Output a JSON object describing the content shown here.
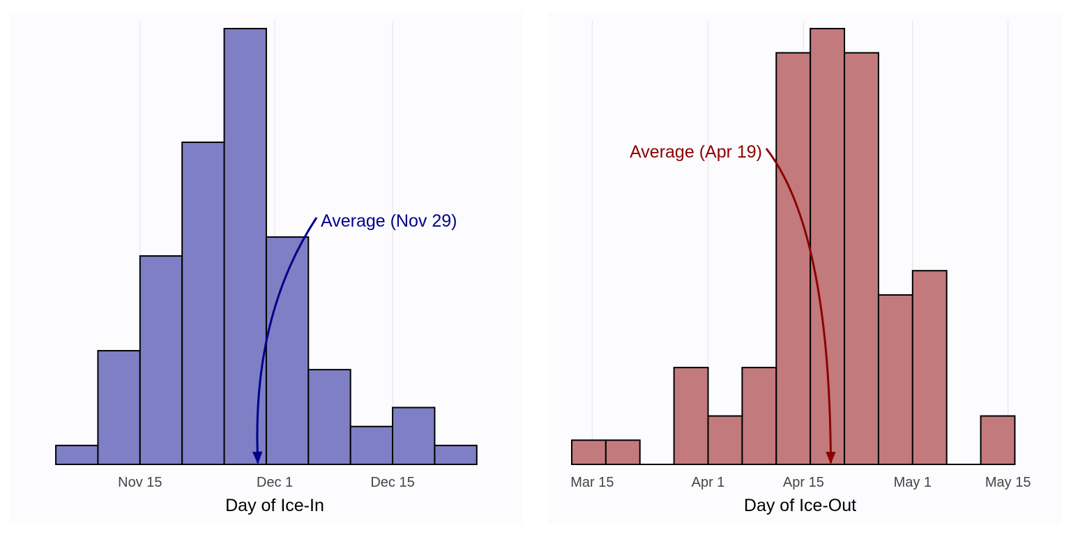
{
  "chart_data": [
    {
      "type": "bar",
      "chart_kind": "histogram",
      "xlabel": "Day of Ice-In",
      "ylabel": "",
      "x_ticks": [
        "Nov 15",
        "Dec 1",
        "Dec 15"
      ],
      "x_tick_dates": [
        "2000-11-15",
        "2000-12-01",
        "2000-12-15"
      ],
      "x_range": [
        "2000-11-04",
        "2000-12-28"
      ],
      "grid": "vertical",
      "legend": "none",
      "bins": [
        {
          "start": "2000-11-05",
          "end": "2000-11-10",
          "count": 2
        },
        {
          "start": "2000-11-10",
          "end": "2000-11-15",
          "count": 12
        },
        {
          "start": "2000-11-15",
          "end": "2000-11-20",
          "count": 22
        },
        {
          "start": "2000-11-20",
          "end": "2000-11-25",
          "count": 34
        },
        {
          "start": "2000-11-25",
          "end": "2000-11-30",
          "count": 46
        },
        {
          "start": "2000-11-30",
          "end": "2000-12-05",
          "count": 24
        },
        {
          "start": "2000-12-05",
          "end": "2000-12-10",
          "count": 10
        },
        {
          "start": "2000-12-10",
          "end": "2000-12-15",
          "count": 4
        },
        {
          "start": "2000-12-15",
          "end": "2000-12-20",
          "count": 6
        },
        {
          "start": "2000-12-20",
          "end": "2000-12-25",
          "count": 2
        }
      ],
      "ylim": [
        0,
        46
      ],
      "annotation": {
        "text": "Average (Nov 29)",
        "x": "2000-11-29"
      },
      "bar_color": "#7f7fc5",
      "annotation_color": "#00008b"
    },
    {
      "type": "bar",
      "chart_kind": "histogram",
      "xlabel": "Day of Ice-Out",
      "ylabel": "",
      "x_ticks": [
        "Mar 15",
        "Apr 1",
        "Apr 15",
        "May 1",
        "May 15"
      ],
      "x_tick_dates": [
        "2001-03-15",
        "2001-04-01",
        "2001-04-15",
        "2001-05-01",
        "2001-05-15"
      ],
      "x_range": [
        "2001-03-12",
        "2001-05-18"
      ],
      "grid": "vertical",
      "legend": "none",
      "bins": [
        {
          "start": "2001-03-12",
          "end": "2001-03-17",
          "count": 1
        },
        {
          "start": "2001-03-17",
          "end": "2001-03-22",
          "count": 1
        },
        {
          "start": "2001-03-22",
          "end": "2001-03-27",
          "count": 0
        },
        {
          "start": "2001-03-27",
          "end": "2001-04-01",
          "count": 4
        },
        {
          "start": "2001-04-01",
          "end": "2001-04-06",
          "count": 2
        },
        {
          "start": "2001-04-06",
          "end": "2001-04-11",
          "count": 4
        },
        {
          "start": "2001-04-11",
          "end": "2001-04-16",
          "count": 17
        },
        {
          "start": "2001-04-16",
          "end": "2001-04-21",
          "count": 18
        },
        {
          "start": "2001-04-21",
          "end": "2001-04-26",
          "count": 17
        },
        {
          "start": "2001-04-26",
          "end": "2001-05-01",
          "count": 7
        },
        {
          "start": "2001-05-01",
          "end": "2001-05-06",
          "count": 8
        },
        {
          "start": "2001-05-06",
          "end": "2001-05-11",
          "count": 0
        },
        {
          "start": "2001-05-11",
          "end": "2001-05-16",
          "count": 2
        }
      ],
      "ylim": [
        0,
        18
      ],
      "annotation": {
        "text": "Average (Apr 19)",
        "x": "2001-04-19"
      },
      "bar_color": "#c27a7c",
      "annotation_color": "#8b0000"
    }
  ]
}
